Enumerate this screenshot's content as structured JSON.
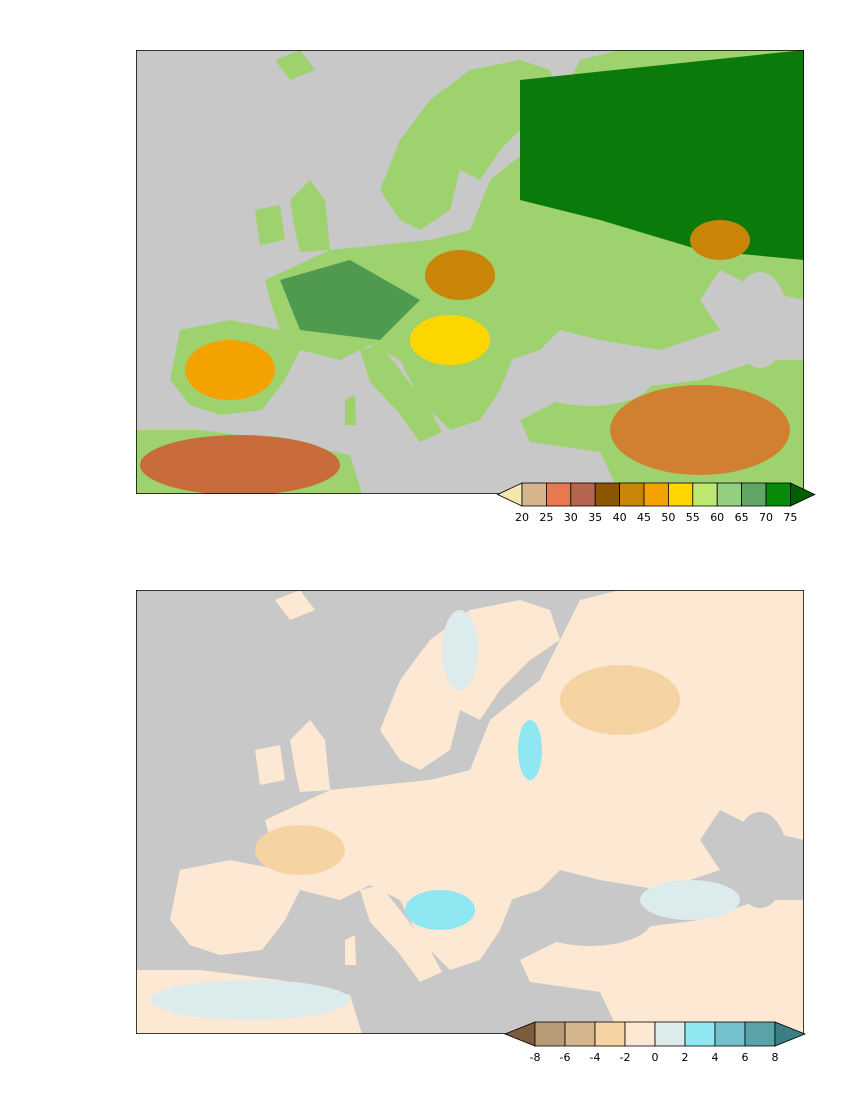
{
  "maps": [
    {
      "colorbar": {
        "ticks": [
          20,
          25,
          30,
          35,
          40,
          45,
          50,
          55,
          60,
          65,
          70,
          75
        ],
        "colors": [
          "#f3e6ae",
          "#d6b48c",
          "#e8794f",
          "#b4644f",
          "#8c5600",
          "#c98508",
          "#f3a200",
          "#fdd600",
          "#bfe870",
          "#93cf80",
          "#63a565",
          "#078a07",
          "#005f00"
        ]
      }
    },
    {
      "colorbar": {
        "ticks": [
          -8,
          -6,
          -4,
          -2,
          0,
          2,
          4,
          6,
          8
        ],
        "colors": [
          "#7d5c3e",
          "#b99c76",
          "#d5b58b",
          "#f6d3a3",
          "#fde9d3",
          "#dcebeb",
          "#8ee7f1",
          "#73c1cd",
          "#5aa1a8",
          "#3b7f86"
        ]
      }
    }
  ]
}
